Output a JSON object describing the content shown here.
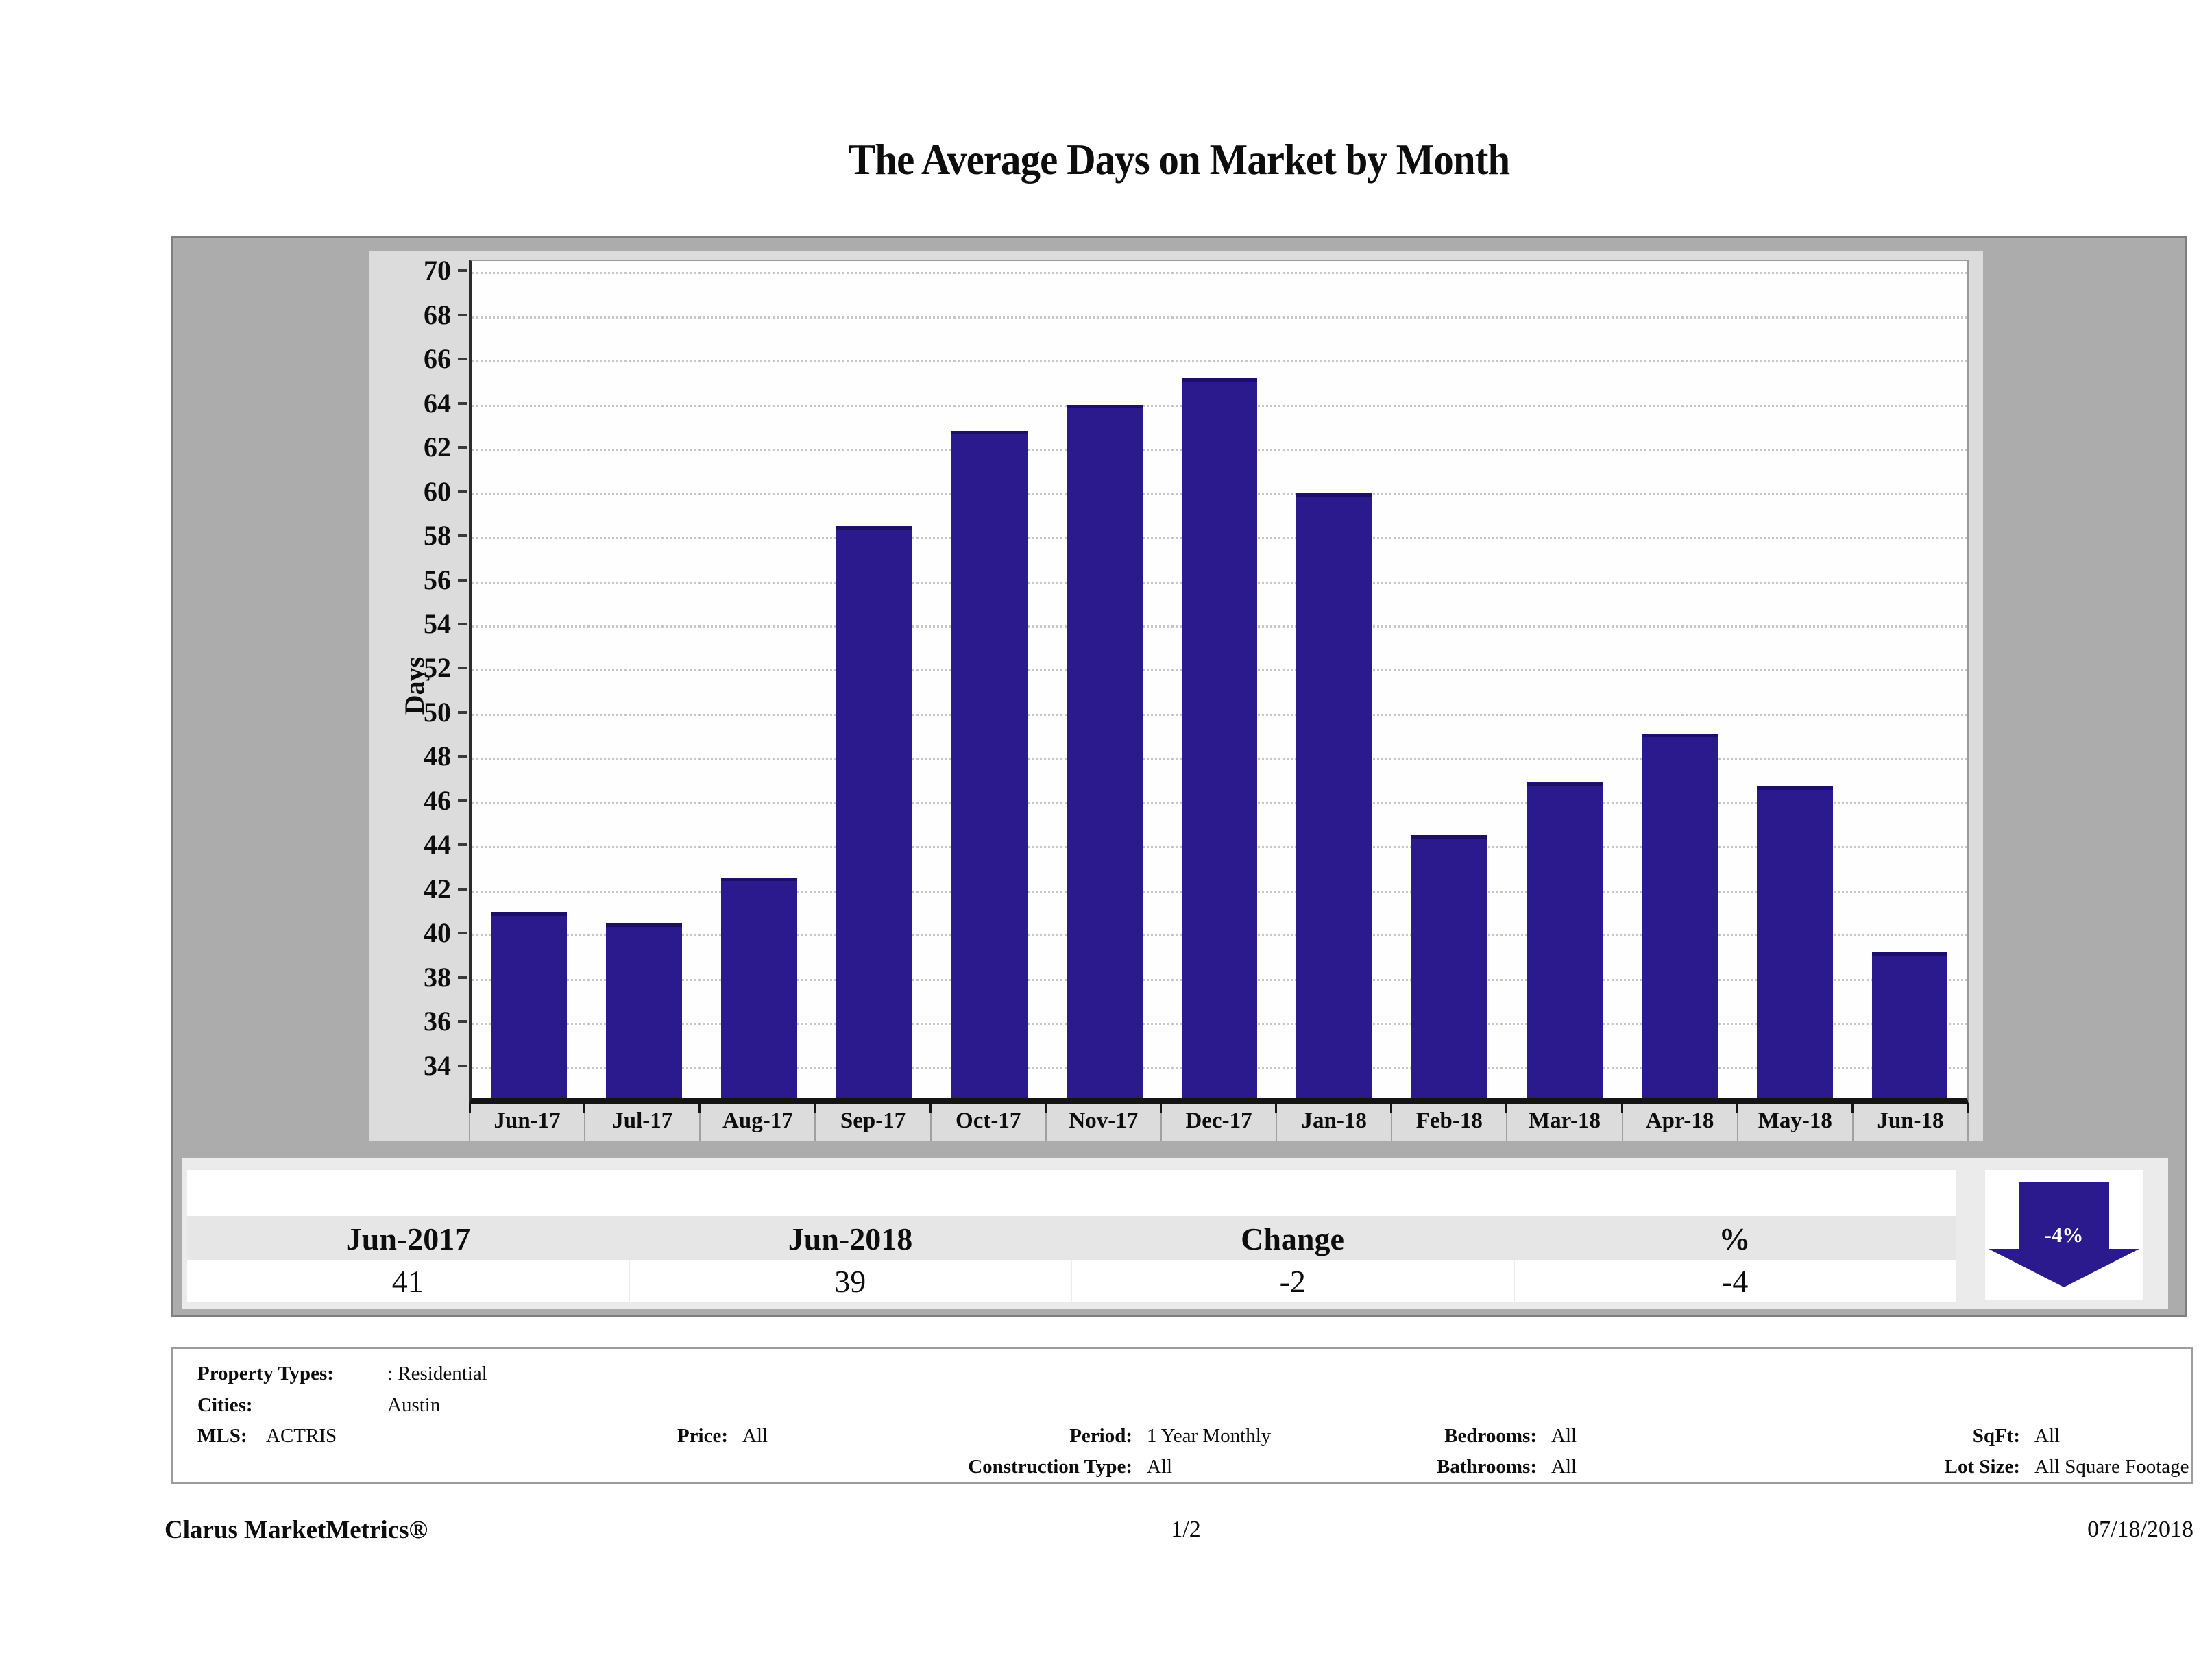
{
  "title": "The Average Days on Market by Month",
  "chart_data": {
    "type": "bar",
    "title": "The Average Days on Market by Month",
    "categories": [
      "Jun-17",
      "Jul-17",
      "Aug-17",
      "Sep-17",
      "Oct-17",
      "Nov-17",
      "Dec-17",
      "Jan-18",
      "Feb-18",
      "Mar-18",
      "Apr-18",
      "May-18",
      "Jun-18"
    ],
    "values": [
      41.0,
      40.5,
      42.6,
      58.5,
      62.8,
      64.0,
      65.2,
      60.0,
      44.5,
      46.9,
      49.1,
      46.7,
      39.2
    ],
    "xlabel": "",
    "ylabel": "Days",
    "ylim": [
      32.6,
      70.5
    ],
    "yticks": [
      34,
      36,
      38,
      40,
      42,
      44,
      46,
      48,
      50,
      52,
      54,
      56,
      58,
      60,
      62,
      64,
      66,
      68,
      70
    ],
    "grid": true,
    "legend_position": "none",
    "bar_color": "#2b1a8e"
  },
  "summary_table": {
    "columns": [
      "Jun-2017",
      "Jun-2018",
      "Change",
      "%"
    ],
    "values": [
      "41",
      "39",
      "-2",
      "-4"
    ],
    "arrow_label": "-4%",
    "arrow_direction": "down"
  },
  "criteria": {
    "property_types_label": "Property Types:",
    "property_types_value": ": Residential",
    "cities_label": "Cities:",
    "cities_value": "Austin",
    "mls_label": "MLS:",
    "mls_value": "ACTRIS",
    "price_label": "Price:",
    "price_value": "All",
    "period_label": "Period:",
    "period_value": "1 Year Monthly",
    "construction_label": "Construction Type:",
    "construction_value": "All",
    "bedrooms_label": "Bedrooms:",
    "bedrooms_value": "All",
    "bathrooms_label": "Bathrooms:",
    "bathrooms_value": "All",
    "sqft_label": "SqFt:",
    "sqft_value": "All",
    "lot_label": "Lot Size:",
    "lot_value": "All Square Footage"
  },
  "footer": {
    "brand": "Clarus MarketMetrics®",
    "page": "1/2",
    "date": "07/18/2018"
  },
  "colors": {
    "bar": "#2b1a8e",
    "bar_edge": "#1d0f63",
    "outer_box": "#acacac",
    "panel": "#dcdcdc",
    "grid": "#c6c6c6",
    "table_frame": "#ebebeb"
  }
}
